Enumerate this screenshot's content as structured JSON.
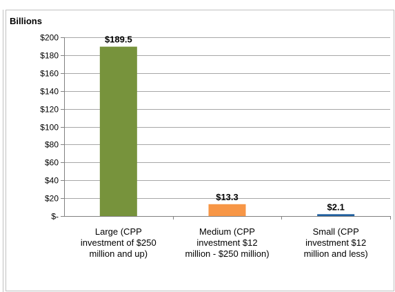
{
  "chart_data": {
    "type": "bar",
    "unit_label": "Billions",
    "categories": [
      [
        "Large (CPP",
        "investment of $250",
        "million and up)"
      ],
      [
        "Medium (CPP",
        "investment $12",
        "million - $250 million)"
      ],
      [
        "Small (CPP",
        "investment $12",
        "million and less)"
      ]
    ],
    "values": [
      189.5,
      13.3,
      2.1
    ],
    "data_labels": [
      "$189.5",
      "$13.3",
      "$2.1"
    ],
    "colors": [
      "#77933c",
      "#f79646",
      "#1f5f9f"
    ],
    "ylim": [
      0,
      200
    ],
    "y_ticks": [
      0,
      20,
      40,
      60,
      80,
      100,
      120,
      140,
      160,
      180,
      200
    ],
    "y_tick_labels": [
      "$-",
      "$20",
      "$40",
      "$60",
      "$80",
      "$100",
      "$120",
      "$140",
      "$160",
      "$180",
      "$200"
    ],
    "grid": true,
    "legend": "none"
  }
}
